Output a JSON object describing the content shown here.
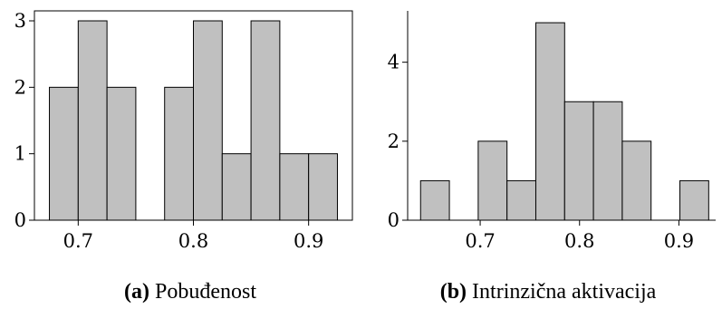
{
  "chart_data": [
    {
      "type": "bar",
      "panel": "a",
      "caption_label": "(a)",
      "caption_text": "Pobuđenost",
      "bins": [
        {
          "x0": 0.675,
          "x1": 0.7,
          "count": 2
        },
        {
          "x0": 0.7,
          "x1": 0.725,
          "count": 3
        },
        {
          "x0": 0.725,
          "x1": 0.75,
          "count": 2
        },
        {
          "x0": 0.75,
          "x1": 0.775,
          "count": 0
        },
        {
          "x0": 0.775,
          "x1": 0.8,
          "count": 2
        },
        {
          "x0": 0.8,
          "x1": 0.825,
          "count": 3
        },
        {
          "x0": 0.825,
          "x1": 0.85,
          "count": 1
        },
        {
          "x0": 0.85,
          "x1": 0.875,
          "count": 3
        },
        {
          "x0": 0.875,
          "x1": 0.9,
          "count": 1
        },
        {
          "x0": 0.9,
          "x1": 0.925,
          "count": 1
        }
      ],
      "xlim": [
        0.662,
        0.938
      ],
      "ylim": [
        0,
        3.15
      ],
      "xticks": [
        0.7,
        0.8,
        0.9
      ],
      "xtick_labels": [
        "0.7",
        "0.8",
        "0.9"
      ],
      "yticks": [
        0,
        1,
        2,
        3
      ],
      "ytick_labels": [
        "0",
        "1",
        "2",
        "3"
      ],
      "frame": "full",
      "grid": false,
      "bar_color": "#c0c0c0"
    },
    {
      "type": "bar",
      "panel": "b",
      "caption_label": "(b)",
      "caption_text": "Intrinzična aktivacija",
      "bins": [
        {
          "x0": 0.64,
          "x1": 0.669,
          "count": 1
        },
        {
          "x0": 0.669,
          "x1": 0.698,
          "count": 0
        },
        {
          "x0": 0.698,
          "x1": 0.727,
          "count": 2
        },
        {
          "x0": 0.727,
          "x1": 0.756,
          "count": 1
        },
        {
          "x0": 0.756,
          "x1": 0.785,
          "count": 5
        },
        {
          "x0": 0.785,
          "x1": 0.814,
          "count": 3
        },
        {
          "x0": 0.814,
          "x1": 0.843,
          "count": 3
        },
        {
          "x0": 0.843,
          "x1": 0.872,
          "count": 2
        },
        {
          "x0": 0.872,
          "x1": 0.901,
          "count": 0
        },
        {
          "x0": 0.901,
          "x1": 0.93,
          "count": 1
        }
      ],
      "xlim": [
        0.627,
        0.937
      ],
      "ylim": [
        0,
        5.3
      ],
      "xticks": [
        0.7,
        0.8,
        0.9
      ],
      "xtick_labels": [
        "0.7",
        "0.8",
        "0.9"
      ],
      "yticks": [
        0,
        2,
        4
      ],
      "ytick_labels": [
        "0",
        "2",
        "4"
      ],
      "frame": "left-bottom",
      "grid": false,
      "bar_color": "#c0c0c0"
    }
  ]
}
